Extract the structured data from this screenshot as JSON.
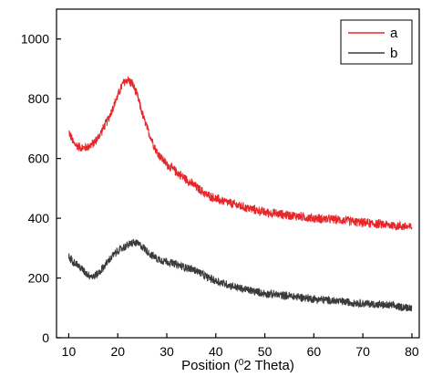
{
  "chart_data": {
    "type": "line",
    "title": "",
    "xlabel": "Position (",
    "xlabel_sup": "0",
    "xlabel_rest": "2 Theta)",
    "ylabel": "",
    "xlim": [
      7.5,
      81.5
    ],
    "ylim": [
      0,
      1100
    ],
    "x_ticks": [
      10,
      20,
      30,
      40,
      50,
      60,
      70,
      80
    ],
    "y_ticks": [
      0,
      200,
      400,
      600,
      800,
      1000
    ],
    "grid": false,
    "legend_position": "top-right",
    "series": [
      {
        "name": "a",
        "color": "#e8262a",
        "noise": 18,
        "x": [
          10,
          11,
          12,
          13,
          14,
          15,
          16,
          17,
          18,
          19,
          20,
          21,
          22,
          23,
          24,
          25,
          26,
          27,
          28,
          30,
          32,
          34,
          36,
          38,
          40,
          45,
          50,
          55,
          60,
          65,
          70,
          75,
          80
        ],
        "y": [
          690,
          650,
          640,
          635,
          640,
          650,
          670,
          700,
          730,
          770,
          810,
          850,
          865,
          850,
          810,
          750,
          700,
          660,
          620,
          580,
          555,
          530,
          505,
          480,
          465,
          440,
          420,
          410,
          400,
          395,
          385,
          378,
          370
        ]
      },
      {
        "name": "b",
        "color": "#3a3a3a",
        "noise": 16,
        "x": [
          10,
          11,
          12,
          13,
          14,
          15,
          16,
          17,
          18,
          19,
          20,
          21,
          22,
          23,
          24,
          25,
          26,
          27,
          28,
          30,
          32,
          34,
          36,
          38,
          40,
          45,
          50,
          55,
          60,
          65,
          70,
          75,
          80
        ],
        "y": [
          270,
          255,
          240,
          225,
          210,
          205,
          215,
          235,
          255,
          275,
          290,
          300,
          310,
          318,
          315,
          305,
          290,
          275,
          265,
          255,
          245,
          235,
          225,
          205,
          190,
          165,
          148,
          140,
          130,
          122,
          115,
          108,
          100
        ]
      }
    ]
  }
}
